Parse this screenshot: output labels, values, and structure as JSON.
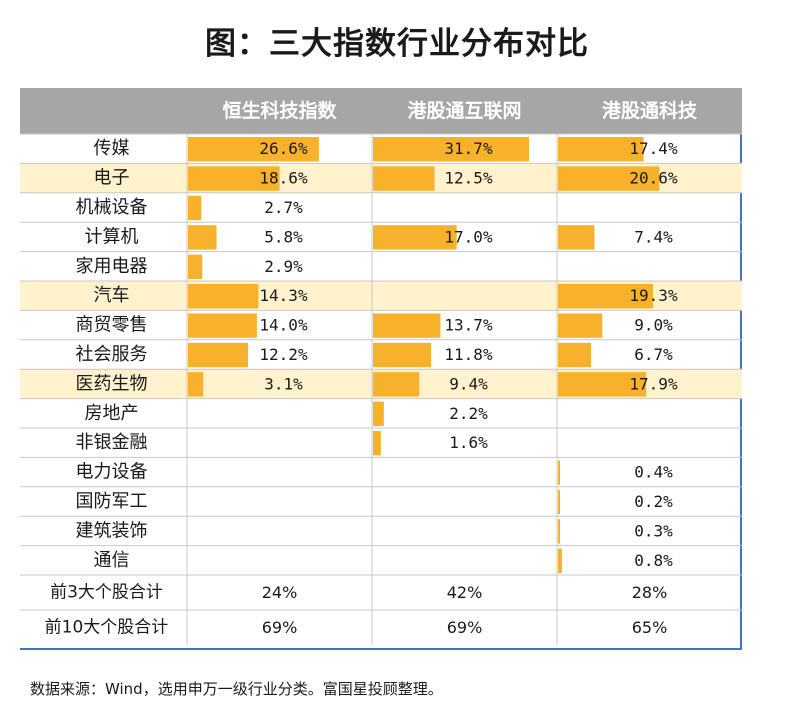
{
  "title": "图：三大指数行业分布对比",
  "note": "数据来源：Wind，选用申万一级行业分类。富国星投顾整理。",
  "colors": {
    "header_bg": "#a6a6a6",
    "header_text": "#ffffff",
    "highlight_row": "#fff2cc",
    "bar": "#f7b12b",
    "grid": "#c8c8c8"
  },
  "chart_data": {
    "type": "table",
    "title": "图：三大指数行业分布对比",
    "columns": [
      "恒生科技指数",
      "港股通互联网",
      "港股通科技"
    ],
    "rows": [
      {
        "industry": "传媒",
        "values": [
          26.6,
          31.7,
          17.4
        ],
        "labels": [
          "26.6%",
          "31.7%",
          "17.4%"
        ],
        "highlight": false
      },
      {
        "industry": "电子",
        "values": [
          18.6,
          12.5,
          20.6
        ],
        "labels": [
          "18.6%",
          "12.5%",
          "20.6%"
        ],
        "highlight": true
      },
      {
        "industry": "机械设备",
        "values": [
          2.7,
          null,
          null
        ],
        "labels": [
          "2.7%",
          "",
          ""
        ],
        "highlight": false
      },
      {
        "industry": "计算机",
        "values": [
          5.8,
          17.0,
          7.4
        ],
        "labels": [
          "5.8%",
          "17.0%",
          "7.4%"
        ],
        "highlight": false
      },
      {
        "industry": "家用电器",
        "values": [
          2.9,
          null,
          null
        ],
        "labels": [
          "2.9%",
          "",
          ""
        ],
        "highlight": false
      },
      {
        "industry": "汽车",
        "values": [
          14.3,
          null,
          19.3
        ],
        "labels": [
          "14.3%",
          "",
          "19.3%"
        ],
        "highlight": true
      },
      {
        "industry": "商贸零售",
        "values": [
          14.0,
          13.7,
          9.0
        ],
        "labels": [
          "14.0%",
          "13.7%",
          "9.0%"
        ],
        "highlight": false
      },
      {
        "industry": "社会服务",
        "values": [
          12.2,
          11.8,
          6.7
        ],
        "labels": [
          "12.2%",
          "11.8%",
          "6.7%"
        ],
        "highlight": false
      },
      {
        "industry": "医药生物",
        "values": [
          3.1,
          9.4,
          17.9
        ],
        "labels": [
          "3.1%",
          "9.4%",
          "17.9%"
        ],
        "highlight": true
      },
      {
        "industry": "房地产",
        "values": [
          null,
          2.2,
          null
        ],
        "labels": [
          "",
          "2.2%",
          ""
        ],
        "highlight": false
      },
      {
        "industry": "非银金融",
        "values": [
          null,
          1.6,
          null
        ],
        "labels": [
          "",
          "1.6%",
          ""
        ],
        "highlight": false
      },
      {
        "industry": "电力设备",
        "values": [
          null,
          null,
          0.4
        ],
        "labels": [
          "",
          "",
          "0.4%"
        ],
        "highlight": false
      },
      {
        "industry": "国防军工",
        "values": [
          null,
          null,
          0.2
        ],
        "labels": [
          "",
          "",
          "0.2%"
        ],
        "highlight": false
      },
      {
        "industry": "建筑装饰",
        "values": [
          null,
          null,
          0.3
        ],
        "labels": [
          "",
          "",
          "0.3%"
        ],
        "highlight": false
      },
      {
        "industry": "通信",
        "values": [
          null,
          null,
          0.8
        ],
        "labels": [
          "",
          "",
          "0.8%"
        ],
        "highlight": false
      }
    ],
    "summary_rows": [
      {
        "label": "前3大个股合计",
        "values": [
          "24%",
          "42%",
          "28%"
        ]
      },
      {
        "label": "前10大个股合计",
        "values": [
          "69%",
          "69%",
          "65%"
        ]
      }
    ],
    "bar_scale_max": 31.7
  }
}
